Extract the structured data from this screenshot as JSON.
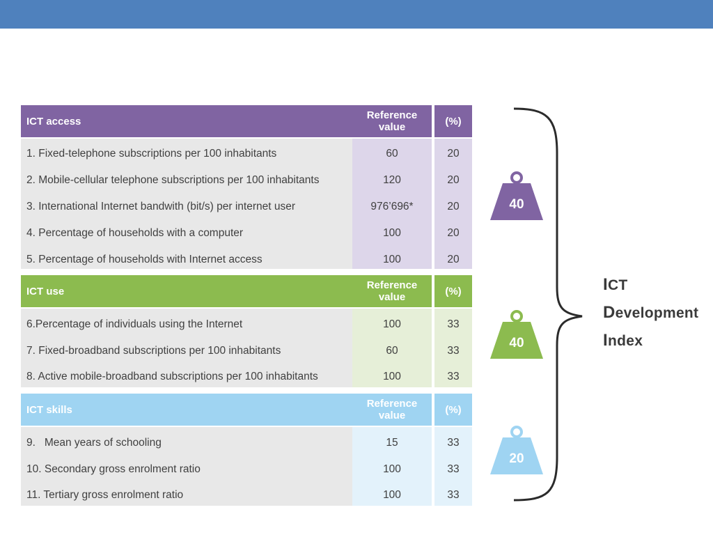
{
  "colors": {
    "topbar": "#4f81bd",
    "access_header": "#8064a2",
    "access_light": "#ddd6ea",
    "use_header": "#8cbb4f",
    "use_light": "#e6efd8",
    "skills_header": "#9fd4f2",
    "skills_light": "#e3f2fb",
    "name_column": "#e8e8e8"
  },
  "sections": [
    {
      "title": "ICT access",
      "ref_header": "Reference value",
      "pct_header": "(%)",
      "rows": [
        {
          "name": "1. Fixed-telephone subscriptions per 100 inhabitants",
          "ref": "60",
          "pct": "20"
        },
        {
          "name": "2. Mobile-cellular telephone subscriptions per 100 inhabitants",
          "ref": "120",
          "pct": "20"
        },
        {
          "name": "3. International Internet bandwith (bit/s) per internet user",
          "ref": "976’696*",
          "pct": "20"
        },
        {
          "name": "4. Percentage of households with a computer",
          "ref": "100",
          "pct": "20"
        },
        {
          "name": "5. Percentage of households with Internet access",
          "ref": "100",
          "pct": "20"
        }
      ]
    },
    {
      "title": "ICT use",
      "ref_header": "Reference value",
      "pct_header": "(%)",
      "rows": [
        {
          "name": "6.Percentage of individuals using the Internet",
          "ref": "100",
          "pct": "33"
        },
        {
          "name": "7. Fixed-broadband subscriptions per 100 inhabitants",
          "ref": "60",
          "pct": "33"
        },
        {
          "name": "8. Active mobile-broadband subscriptions per 100 inhabitants",
          "ref": "100",
          "pct": "33"
        }
      ]
    },
    {
      "title": "ICT skills",
      "ref_header": "Reference value",
      "pct_header": "(%)",
      "rows": [
        {
          "name": "9.   Mean years of schooling",
          "ref": "15",
          "pct": "33"
        },
        {
          "name": "10. Secondary gross enrolment ratio",
          "ref": "100",
          "pct": "33"
        },
        {
          "name": "11. Tertiary gross enrolment ratio",
          "ref": "100",
          "pct": "33"
        }
      ]
    }
  ],
  "weights": [
    {
      "label": "40",
      "color": "#8064a2"
    },
    {
      "label": "40",
      "color": "#8cbb4f"
    },
    {
      "label": "20",
      "color": "#9fd4f2"
    }
  ],
  "index_title": {
    "line1_initial": "I",
    "line1_rest": "CT",
    "line2_initial": "D",
    "line2_rest": "evelopment",
    "line3_initial": "I",
    "line3_rest": "ndex"
  }
}
